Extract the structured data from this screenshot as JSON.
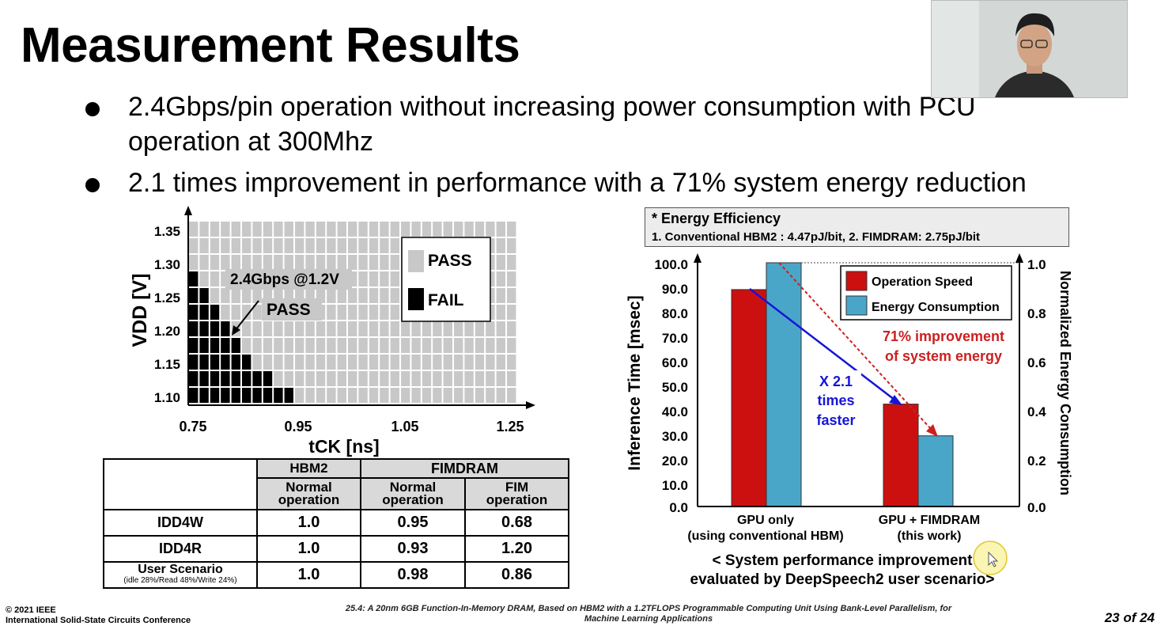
{
  "slide": {
    "title": "Measurement Results",
    "bullets": [
      "2.4Gbps/pin operation without increasing power consumption with PCU",
      "operation at 300Mhz",
      "2.1 times improvement in performance with a 71% system energy reduction"
    ]
  },
  "shmoo": {
    "ylabel": "VDD [V]",
    "xlabel": "tCK [ns]",
    "y_ticks": [
      "1.35",
      "1.30",
      "1.25",
      "1.20",
      "1.15",
      "1.10"
    ],
    "x_ticks": [
      "0.75",
      "0.95",
      "1.05",
      "1.25"
    ],
    "legend_pass": "PASS",
    "legend_fail": "FAIL",
    "annotation_line1": "2.4Gbps @1.2V",
    "annotation_line2": "PASS",
    "fail_counts_by_row_bottom_up": [
      10,
      8,
      6,
      5,
      4,
      3,
      2,
      1,
      0,
      0,
      0
    ],
    "rows": 11,
    "cols": 31,
    "colors": {
      "pass": "#c8c8c8",
      "fail": "#000000"
    }
  },
  "table": {
    "group_hbm2": "HBM2",
    "group_fimdram": "FIMDRAM",
    "sub_normal_1": "Normal",
    "sub_normal_2": "operation",
    "sub_fim_1": "FIM",
    "sub_fim_2": "operation",
    "rows": [
      {
        "label": "IDD4W",
        "hbm2": "1.0",
        "fim_normal": "0.95",
        "fim_fim": "0.68"
      },
      {
        "label": "IDD4R",
        "hbm2": "1.0",
        "fim_normal": "0.93",
        "fim_fim": "1.20"
      },
      {
        "label": "User Scenario",
        "sublabel": "(idle 28%/Read 48%/Write 24%)",
        "hbm2": "1.0",
        "fim_normal": "0.98",
        "fim_fim": "0.86"
      }
    ]
  },
  "energy_box": {
    "title": "* Energy Efficiency",
    "detail": "1. Conventional HBM2 : 4.47pJ/bit, 2. FIMDRAM: 2.75pJ/bit"
  },
  "chart_data": {
    "type": "bar",
    "categories": [
      "GPU only",
      "GPU + FIMDRAM"
    ],
    "category_sublabels": [
      "(using conventional HBM)",
      "(this work)"
    ],
    "series": [
      {
        "name": "Operation Speed",
        "values": [
          89,
          42
        ],
        "axis": "left",
        "color": "#cc1010"
      },
      {
        "name": "Energy Consumption",
        "values": [
          1.0,
          0.29
        ],
        "axis": "right",
        "color": "#4aa6c8"
      }
    ],
    "ylabel": "Inference Time [msec]",
    "y2label": "Normalized Energy Consumption",
    "ylim": [
      0,
      100
    ],
    "y2lim": [
      0,
      1.0
    ],
    "y_ticks": [
      "100.0",
      "90.0",
      "80.0",
      "70.0",
      "60.0",
      "50.0",
      "40.0",
      "30.0",
      "20.0",
      "10.0",
      "0.0"
    ],
    "y2_ticks": [
      "1.0",
      "0.8",
      "0.6",
      "0.4",
      "0.2",
      "0.0"
    ],
    "annotation_speed": [
      "X 2.1",
      "times",
      "faster"
    ],
    "annotation_energy": [
      "71% improvement",
      "of system energy"
    ],
    "caption": [
      "< System performance improvement",
      "evaluated by DeepSpeech2 user scenario>"
    ]
  },
  "footer": {
    "copyright": "© 2021 IEEE",
    "conference": "International Solid-State Circuits Conference",
    "paper_line1": "25.4: A 20nm 6GB Function-In-Memory DRAM, Based on HBM2 with a 1.2TFLOPS Programmable Computing Unit Using Bank-Level Parallelism, for",
    "paper_line2": "Machine Learning Applications",
    "page": "23 of 24"
  }
}
